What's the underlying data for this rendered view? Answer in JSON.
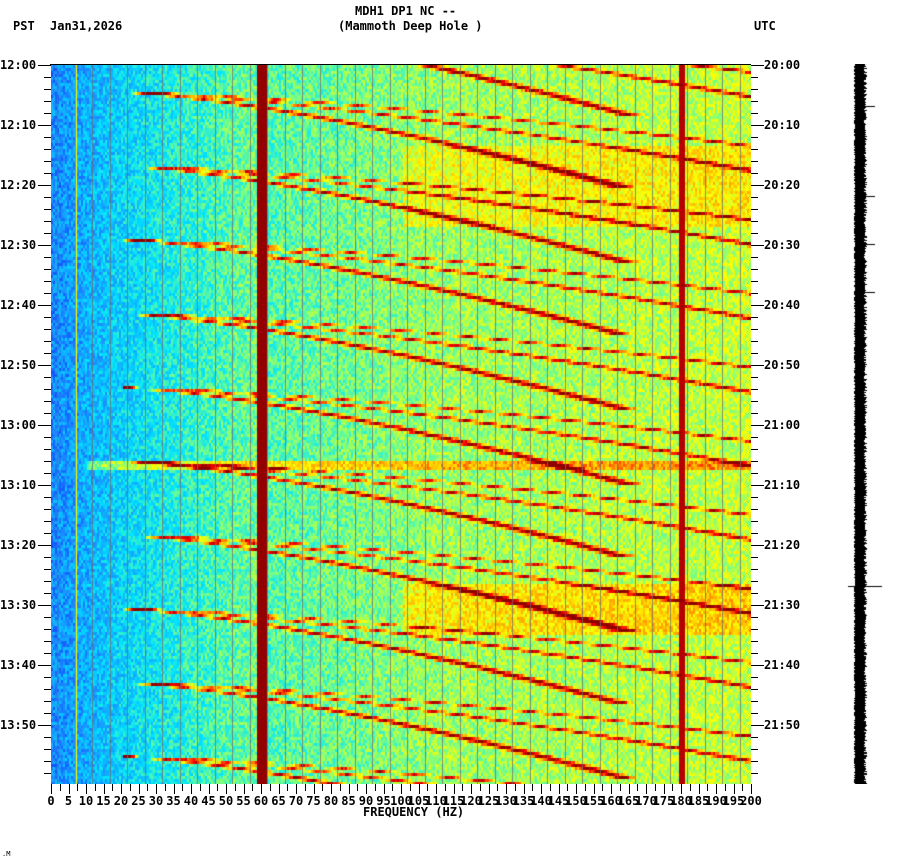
{
  "header": {
    "title_line1": "MDH1 DP1 NC --",
    "title_line2": "(Mammoth Deep Hole )",
    "left_timezone": "PST",
    "date": "Jan31,2026",
    "right_timezone": "UTC"
  },
  "footer": {
    "mark": ".M"
  },
  "chart_data": {
    "type": "heatmap",
    "title": "MDH1 DP1 NC -- (Mammoth Deep Hole )",
    "subtitle": "Jan31,2026",
    "xlabel": "FREQUENCY (HZ)",
    "ylabel_left": "PST",
    "ylabel_right": "UTC",
    "xlim": [
      0,
      200
    ],
    "x_ticks": [
      0,
      5,
      10,
      15,
      20,
      25,
      30,
      35,
      40,
      45,
      50,
      55,
      60,
      65,
      70,
      75,
      80,
      85,
      90,
      95,
      100,
      105,
      110,
      115,
      120,
      125,
      130,
      135,
      140,
      145,
      150,
      155,
      160,
      165,
      170,
      175,
      180,
      185,
      190,
      195,
      200
    ],
    "y_ticks_left": [
      "12:00",
      "12:10",
      "12:20",
      "12:30",
      "12:40",
      "12:50",
      "13:00",
      "13:10",
      "13:20",
      "13:30",
      "13:40",
      "13:50"
    ],
    "y_ticks_right": [
      "20:00",
      "20:10",
      "20:20",
      "20:30",
      "20:40",
      "20:50",
      "21:00",
      "21:10",
      "21:20",
      "21:30",
      "21:40",
      "21:50"
    ],
    "time_range_minutes": 120,
    "colormap": [
      "#0a2fff",
      "#1a8cff",
      "#00e5ff",
      "#7fff7f",
      "#ffff00",
      "#ff9900",
      "#ff0000",
      "#8b0000"
    ],
    "persistent_lines_hz": [
      {
        "freq": 60,
        "intensity": "very high",
        "color": "#8b0000"
      },
      {
        "freq": 180,
        "intensity": "high",
        "color": "#8b0000"
      },
      {
        "freq": 7,
        "intensity": "medium",
        "color": "#ffff00"
      }
    ],
    "features": [
      {
        "type": "descending harmonic arcs",
        "period_minutes": 13,
        "description": "Repeating curved chirps sweeping from ~20 Hz up to ~200 Hz across ~8-15 min"
      },
      {
        "type": "broadband event",
        "time_pst": "12:13-12:27",
        "freq_range_hz": [
          100,
          200
        ]
      },
      {
        "type": "broadband event",
        "time_pst": "13:26-13:35",
        "freq_range_hz": [
          100,
          200
        ]
      },
      {
        "type": "horizontal band",
        "time_pst": "13:06",
        "freq_range_hz": [
          10,
          195
        ]
      }
    ],
    "background_level_by_freq": [
      {
        "freq_range": [
          0,
          20
        ],
        "level": "low (blue)"
      },
      {
        "freq_range": [
          20,
          60
        ],
        "level": "low-medium (cyan)"
      },
      {
        "freq_range": [
          60,
          120
        ],
        "level": "medium (cyan-green)"
      },
      {
        "freq_range": [
          120,
          200
        ],
        "level": "medium-high (green-yellow)"
      }
    ]
  },
  "seismogram": {
    "color": "#000000",
    "spike_times_pst": [
      "12:07",
      "12:22",
      "12:30",
      "12:38",
      "13:27"
    ]
  }
}
